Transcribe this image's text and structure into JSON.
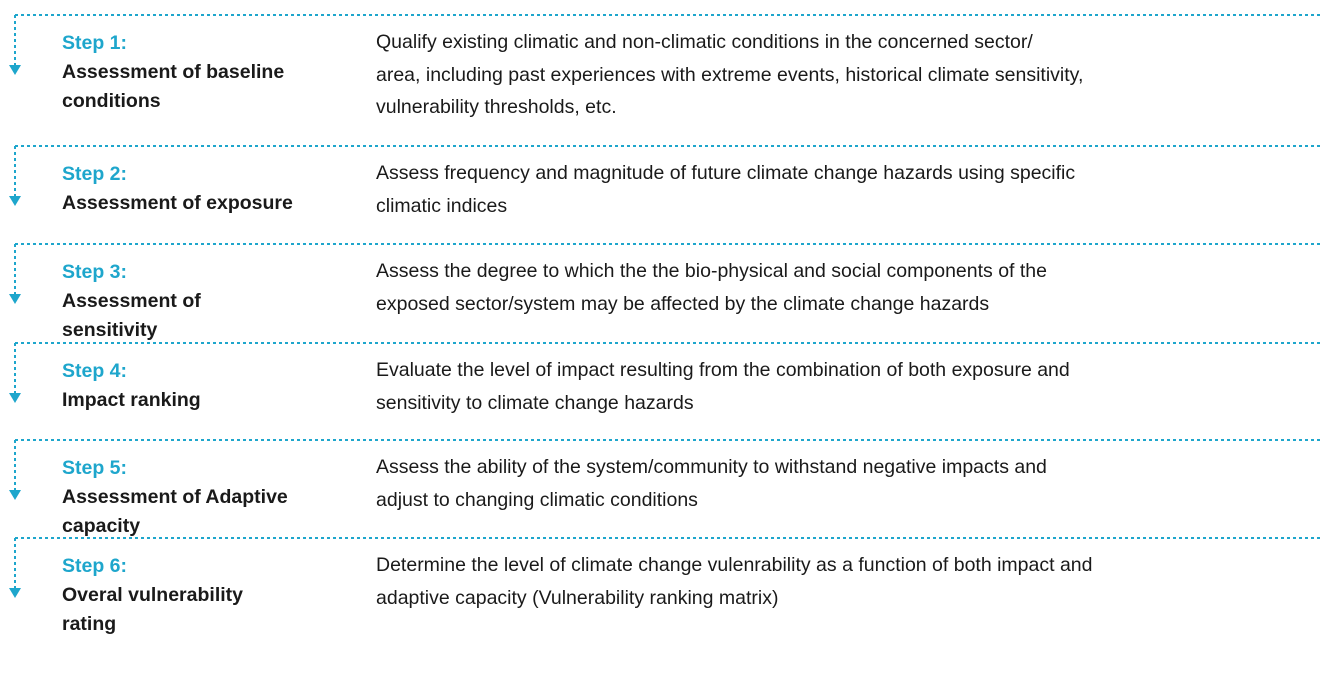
{
  "steps": [
    {
      "label": "Step 1:",
      "title": [
        "Assessment of baseline",
        "conditions"
      ],
      "description": [
        "Qualify existing climatic and non-climatic conditions in the concerned sector/",
        "area, including  past experiences with extreme events, historical climate sensitivity,",
        "vulnerability thresholds, etc."
      ]
    },
    {
      "label": "Step 2:",
      "title": [
        "Assessment of exposure"
      ],
      "description": [
        "Assess frequency and magnitude of future climate change hazards using specific",
        "climatic indices"
      ]
    },
    {
      "label": "Step 3:",
      "title": [
        "Assessment of",
        "sensitivity"
      ],
      "description": [
        "Assess the degree to which the the bio-physical and social components of the",
        "exposed sector/system may be affected by the climate change hazards"
      ]
    },
    {
      "label": "Step 4:",
      "title": [
        "Impact ranking"
      ],
      "description": [
        "Evaluate the level of impact resulting from the combination of both exposure and",
        "sensitivity to climate change hazards"
      ]
    },
    {
      "label": "Step 5:",
      "title": [
        "Assessment of Adaptive",
        "capacity"
      ],
      "description": [
        "Assess the ability of the system/community to withstand negative impacts and",
        "adjust to changing climatic conditions"
      ]
    },
    {
      "label": "Step 6:",
      "title": [
        "Overal vulnerability",
        "rating"
      ],
      "description": [
        "Determine the level of climate change vulenrability as a function of both impact and",
        "adaptive capacity (Vulnerability ranking matrix)"
      ]
    }
  ]
}
